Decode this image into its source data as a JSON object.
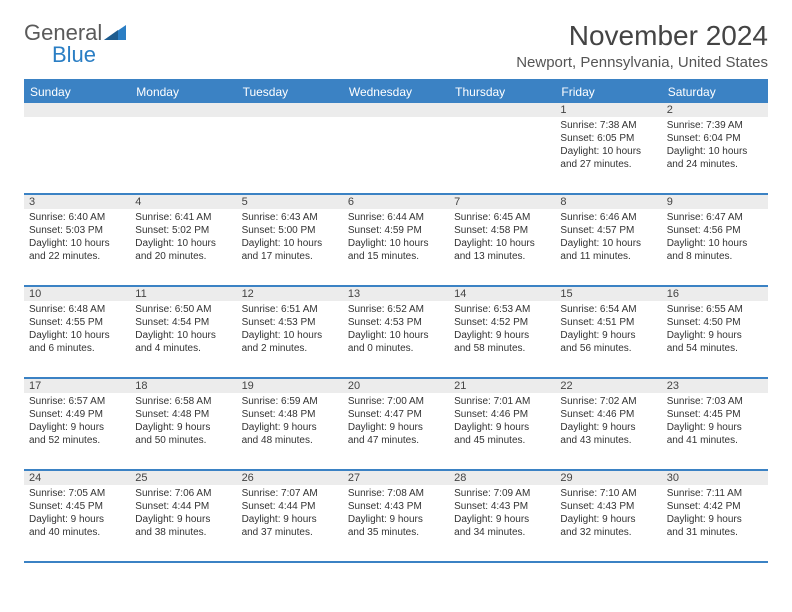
{
  "logo": {
    "top": "General",
    "bottom": "Blue"
  },
  "title": "November 2024",
  "location": "Newport, Pennsylvania, United States",
  "colors": {
    "header_bg": "#3b82c4",
    "header_text": "#ffffff",
    "grayrow": "#ececec",
    "border": "#3b82c4",
    "text": "#333333",
    "logo_gray": "#5a5a5a",
    "logo_blue": "#2a7ec4"
  },
  "day_headers": [
    "Sunday",
    "Monday",
    "Tuesday",
    "Wednesday",
    "Thursday",
    "Friday",
    "Saturday"
  ],
  "weeks": [
    [
      null,
      null,
      null,
      null,
      null,
      {
        "n": "1",
        "sunrise": "7:38 AM",
        "sunset": "6:05 PM",
        "day_h": "10",
        "day_m": "27"
      },
      {
        "n": "2",
        "sunrise": "7:39 AM",
        "sunset": "6:04 PM",
        "day_h": "10",
        "day_m": "24"
      }
    ],
    [
      {
        "n": "3",
        "sunrise": "6:40 AM",
        "sunset": "5:03 PM",
        "day_h": "10",
        "day_m": "22"
      },
      {
        "n": "4",
        "sunrise": "6:41 AM",
        "sunset": "5:02 PM",
        "day_h": "10",
        "day_m": "20"
      },
      {
        "n": "5",
        "sunrise": "6:43 AM",
        "sunset": "5:00 PM",
        "day_h": "10",
        "day_m": "17"
      },
      {
        "n": "6",
        "sunrise": "6:44 AM",
        "sunset": "4:59 PM",
        "day_h": "10",
        "day_m": "15"
      },
      {
        "n": "7",
        "sunrise": "6:45 AM",
        "sunset": "4:58 PM",
        "day_h": "10",
        "day_m": "13"
      },
      {
        "n": "8",
        "sunrise": "6:46 AM",
        "sunset": "4:57 PM",
        "day_h": "10",
        "day_m": "11"
      },
      {
        "n": "9",
        "sunrise": "6:47 AM",
        "sunset": "4:56 PM",
        "day_h": "10",
        "day_m": "8"
      }
    ],
    [
      {
        "n": "10",
        "sunrise": "6:48 AM",
        "sunset": "4:55 PM",
        "day_h": "10",
        "day_m": "6"
      },
      {
        "n": "11",
        "sunrise": "6:50 AM",
        "sunset": "4:54 PM",
        "day_h": "10",
        "day_m": "4"
      },
      {
        "n": "12",
        "sunrise": "6:51 AM",
        "sunset": "4:53 PM",
        "day_h": "10",
        "day_m": "2"
      },
      {
        "n": "13",
        "sunrise": "6:52 AM",
        "sunset": "4:53 PM",
        "day_h": "10",
        "day_m": "0"
      },
      {
        "n": "14",
        "sunrise": "6:53 AM",
        "sunset": "4:52 PM",
        "day_h": "9",
        "day_m": "58"
      },
      {
        "n": "15",
        "sunrise": "6:54 AM",
        "sunset": "4:51 PM",
        "day_h": "9",
        "day_m": "56"
      },
      {
        "n": "16",
        "sunrise": "6:55 AM",
        "sunset": "4:50 PM",
        "day_h": "9",
        "day_m": "54"
      }
    ],
    [
      {
        "n": "17",
        "sunrise": "6:57 AM",
        "sunset": "4:49 PM",
        "day_h": "9",
        "day_m": "52"
      },
      {
        "n": "18",
        "sunrise": "6:58 AM",
        "sunset": "4:48 PM",
        "day_h": "9",
        "day_m": "50"
      },
      {
        "n": "19",
        "sunrise": "6:59 AM",
        "sunset": "4:48 PM",
        "day_h": "9",
        "day_m": "48"
      },
      {
        "n": "20",
        "sunrise": "7:00 AM",
        "sunset": "4:47 PM",
        "day_h": "9",
        "day_m": "47"
      },
      {
        "n": "21",
        "sunrise": "7:01 AM",
        "sunset": "4:46 PM",
        "day_h": "9",
        "day_m": "45"
      },
      {
        "n": "22",
        "sunrise": "7:02 AM",
        "sunset": "4:46 PM",
        "day_h": "9",
        "day_m": "43"
      },
      {
        "n": "23",
        "sunrise": "7:03 AM",
        "sunset": "4:45 PM",
        "day_h": "9",
        "day_m": "41"
      }
    ],
    [
      {
        "n": "24",
        "sunrise": "7:05 AM",
        "sunset": "4:45 PM",
        "day_h": "9",
        "day_m": "40"
      },
      {
        "n": "25",
        "sunrise": "7:06 AM",
        "sunset": "4:44 PM",
        "day_h": "9",
        "day_m": "38"
      },
      {
        "n": "26",
        "sunrise": "7:07 AM",
        "sunset": "4:44 PM",
        "day_h": "9",
        "day_m": "37"
      },
      {
        "n": "27",
        "sunrise": "7:08 AM",
        "sunset": "4:43 PM",
        "day_h": "9",
        "day_m": "35"
      },
      {
        "n": "28",
        "sunrise": "7:09 AM",
        "sunset": "4:43 PM",
        "day_h": "9",
        "day_m": "34"
      },
      {
        "n": "29",
        "sunrise": "7:10 AM",
        "sunset": "4:43 PM",
        "day_h": "9",
        "day_m": "32"
      },
      {
        "n": "30",
        "sunrise": "7:11 AM",
        "sunset": "4:42 PM",
        "day_h": "9",
        "day_m": "31"
      }
    ]
  ]
}
